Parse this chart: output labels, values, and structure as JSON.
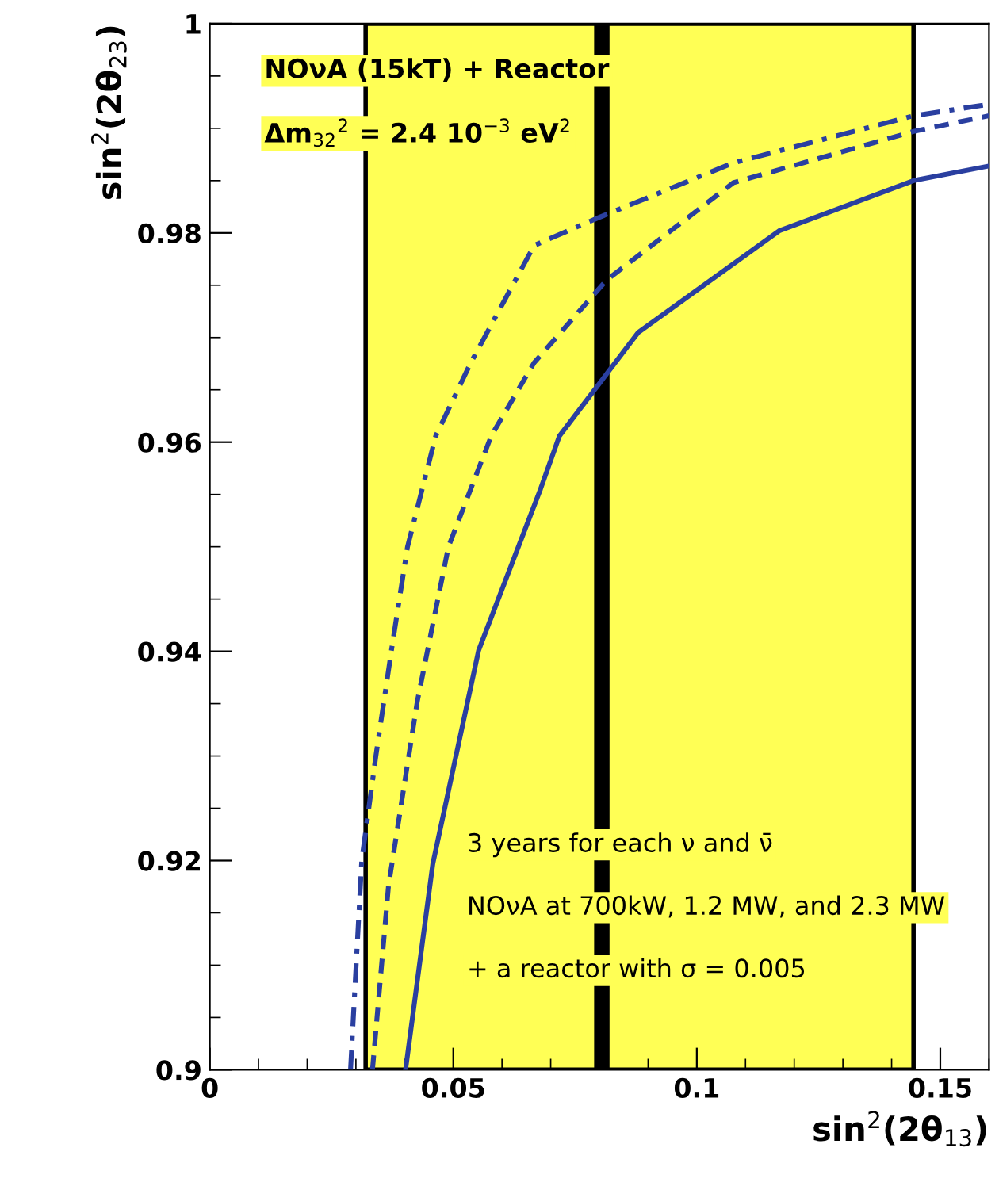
{
  "chart_data": {
    "type": "line",
    "xlabel": "sin$^{2}$(2θ$_{13}$)",
    "ylabel": "sin$^{2}$(2θ$_{23}$)",
    "annotations": [
      "NOνA (15kT) + Reactor",
      "Δm$_{32}$$^{2}$ = 2.4 10$^{−3}$ eV$^{2}$",
      "3 years for each ν and ν̄",
      "NOνA at 700kW, 1.2 MW, and 2.3 MW",
      "+ a reactor with σ = 0.005"
    ],
    "xlim": [
      0,
      0.16
    ],
    "xticks": [
      0,
      0.05,
      0.1,
      0.15
    ],
    "ylim": [
      0.9,
      1
    ],
    "yticks": [
      0.9,
      0.92,
      0.94,
      0.96,
      0.98,
      1
    ],
    "grid": false,
    "legend": false,
    "marker": "none",
    "series": [
      {
        "color": "#2a3fa0",
        "line_style": "solid",
        "x": [
          0.0402,
          0.0458,
          0.0552,
          0.0679,
          0.0718,
          0.088,
          0.1169,
          0.1445,
          0.16
        ],
        "values": [
          0.9,
          0.9197,
          0.9401,
          0.9555,
          0.9606,
          0.9705,
          0.9802,
          0.985,
          0.9864
        ]
      },
      {
        "color": "#2a3fa0",
        "line_style": "dashed",
        "x": [
          0.0334,
          0.0367,
          0.0426,
          0.049,
          0.0578,
          0.0666,
          0.0815,
          0.1075,
          0.1445,
          0.16
        ],
        "values": [
          0.9,
          0.9176,
          0.9352,
          0.95,
          0.9606,
          0.9676,
          0.9755,
          0.9848,
          0.9897,
          0.9912
        ]
      },
      {
        "color": "#2a3fa0",
        "line_style": "dashdot",
        "x": [
          0.0289,
          0.0312,
          0.0341,
          0.0373,
          0.0406,
          0.0464,
          0.0536,
          0.0666,
          0.0795,
          0.1075,
          0.1445,
          0.16
        ],
        "values": [
          0.9,
          0.92,
          0.93,
          0.9401,
          0.95,
          0.9606,
          0.9676,
          0.9788,
          0.9814,
          0.9867,
          0.9912,
          0.9923
        ]
      }
    ],
    "bands": [
      {
        "axis": "x",
        "from": 0.032,
        "to": 0.1445,
        "color": "#ffff55"
      }
    ],
    "ref_lines": [
      {
        "axis": "x",
        "value": 0.0805,
        "color": "#000000",
        "line_style": "solid"
      }
    ]
  }
}
